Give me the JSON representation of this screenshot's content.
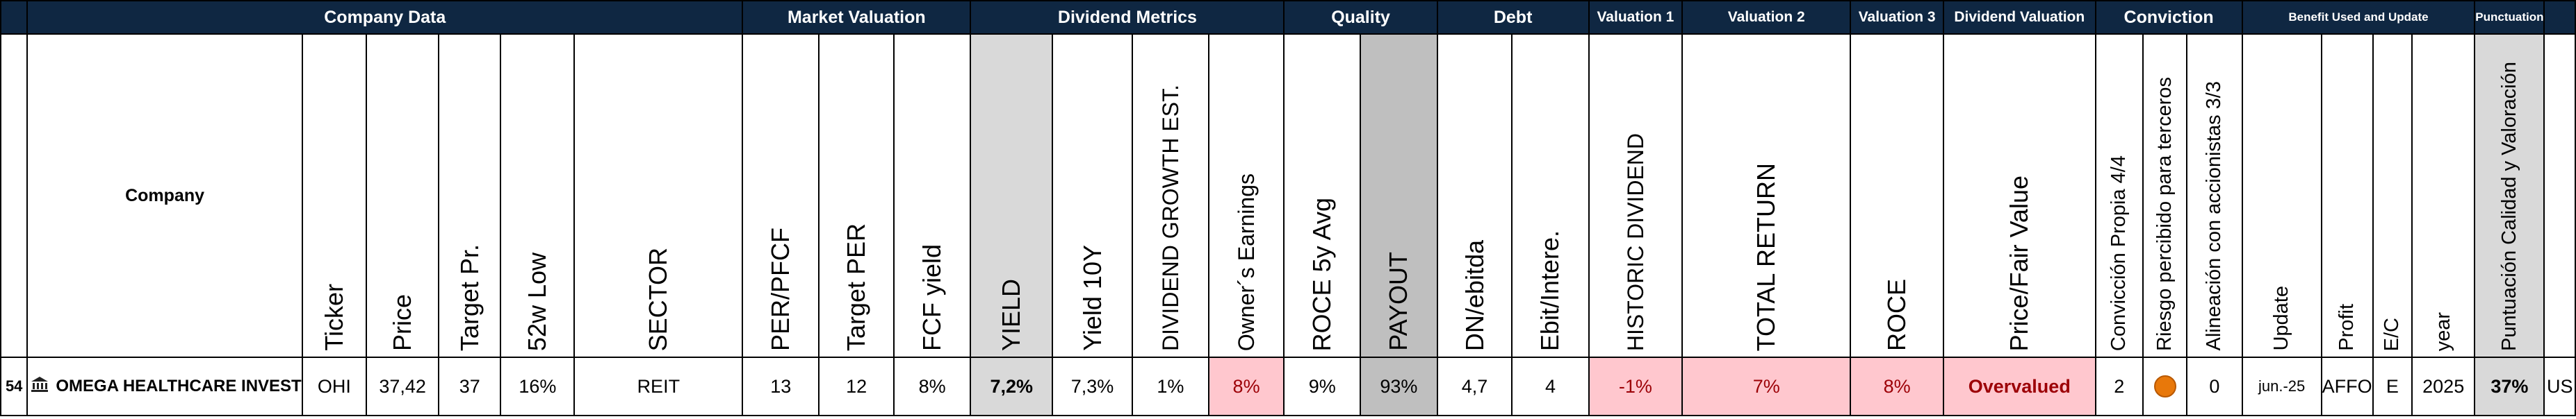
{
  "groups": {
    "company_data": "Company Data",
    "market_valuation": "Market Valuation",
    "dividend_metrics": "Dividend Metrics",
    "quality": "Quality",
    "debt": "Debt",
    "valuation1": "Valuation 1",
    "valuation2": "Valuation 2",
    "valuation3": "Valuation 3",
    "dividend_valuation": "Dividend Valuation",
    "conviction": "Conviction",
    "benefit": "Benefit Used and Update",
    "punctuation": "Punctuation"
  },
  "headers": {
    "company": "Company",
    "ticker": "Ticker",
    "price": "Price",
    "target_pr": "Target Pr.",
    "low52": "52w Low",
    "sector": "SECTOR",
    "per_pfcf": "PER/PFCF",
    "target_per": "Target PER",
    "fcf_yield": "FCF yield",
    "yield": "YIELD",
    "yield10y": "Yield 10Y",
    "div_growth": "DIVIDEND GROWTH EST.",
    "owners_earnings": "Owner´s Earnings",
    "roce5y": "ROCE 5y Avg",
    "payout": "PAYOUT",
    "dn_ebitda": "DN/ebitda",
    "ebit_intere": "Ebit/Intere.",
    "hist_div": "HISTORIC DIVIDEND",
    "total_return": "TOTAL RETURN",
    "roce": "ROCE",
    "price_fair": "Price/Fair Value",
    "conv_propia": "Convicción Propia 4/4",
    "riesgo": "Riesgo percibido para terceros",
    "alineacion": "Alineación con accionistas 3/3",
    "update": "Update",
    "profit": "Profit",
    "ec": "E/C",
    "year": "year",
    "puntuacion": "Puntuación Calidad y Valoración"
  },
  "row": {
    "index": "54",
    "company": "OMEGA HEALTHCARE INVEST",
    "ticker": "OHI",
    "price": "37,42",
    "target_pr": "37",
    "low52": "16%",
    "sector": "REIT",
    "per_pfcf": "13",
    "target_per": "12",
    "fcf_yield": "8%",
    "yield": "7,2%",
    "yield10y": "7,3%",
    "div_growth": "1%",
    "owners_earnings": "8%",
    "roce5y": "9%",
    "payout": "93%",
    "dn_ebitda": "4,7",
    "ebit_intere": "4",
    "hist_div": "-1%",
    "total_return": "7%",
    "roce": "8%",
    "price_fair": "Overvalued",
    "conv_propia": "2",
    "riesgo_indicator": "orange-circle",
    "alineacion": "0",
    "update": "jun.-25",
    "profit": "AFFO",
    "ec": "E",
    "year": "2025",
    "puntuacion": "37%",
    "country": "US"
  },
  "colors": {
    "header_bg": "#0f2742",
    "highlight_pink": "#ffc7ce",
    "highlight_text": "#9c0006",
    "gray": "#d9d9d9",
    "indicator": "#e8780a"
  }
}
